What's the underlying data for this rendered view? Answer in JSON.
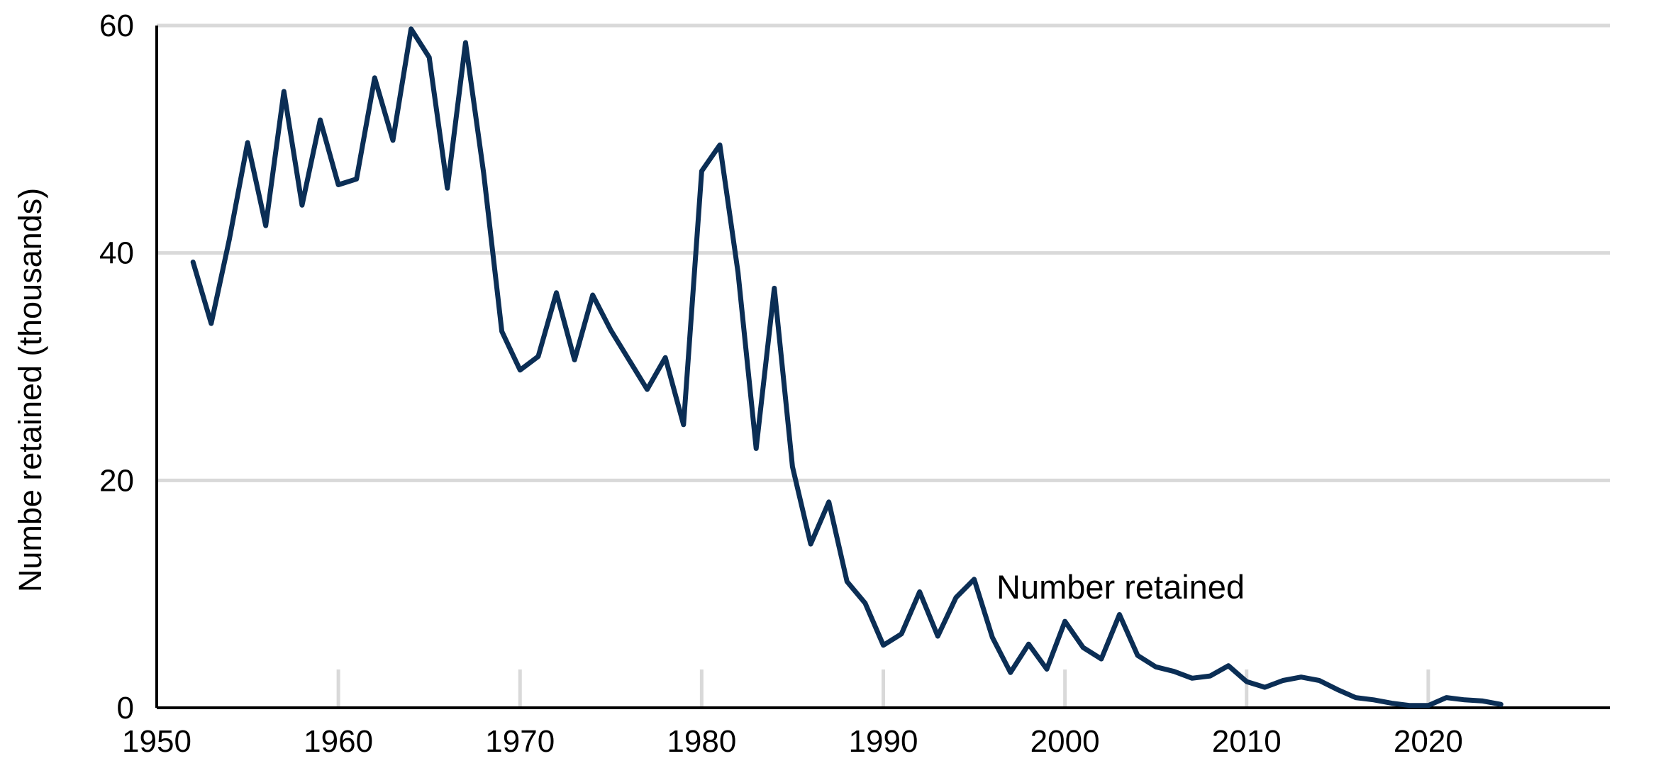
{
  "chart_data": {
    "type": "line",
    "title": "",
    "xlabel": "",
    "ylabel": "Numbe retained (thousands)",
    "xlim": [
      1950,
      2030
    ],
    "ylim": [
      0,
      60
    ],
    "x_ticks": [
      1950,
      1960,
      1970,
      1980,
      1990,
      2000,
      2010,
      2020
    ],
    "y_ticks": [
      0,
      20,
      40,
      60
    ],
    "grid": {
      "horizontal": true,
      "vertical_short_ticks": true
    },
    "legend": "none",
    "series_color": "#0b2e55",
    "grid_color": "#d9d9d9",
    "series": [
      {
        "name": "Number retained",
        "x": [
          1952,
          1953,
          1954,
          1955,
          1956,
          1957,
          1958,
          1959,
          1960,
          1961,
          1962,
          1963,
          1964,
          1965,
          1966,
          1967,
          1968,
          1969,
          1970,
          1971,
          1972,
          1973,
          1974,
          1975,
          1976,
          1977,
          1978,
          1979,
          1980,
          1981,
          1982,
          1983,
          1984,
          1985,
          1986,
          1987,
          1988,
          1989,
          1990,
          1991,
          1992,
          1993,
          1994,
          1995,
          1996,
          1997,
          1998,
          1999,
          2000,
          2001,
          2002,
          2003,
          2004,
          2005,
          2006,
          2007,
          2008,
          2009,
          2010,
          2011,
          2012,
          2013,
          2014,
          2015,
          2016,
          2017,
          2018,
          2019,
          2020,
          2021,
          2022,
          2023,
          2024
        ],
        "y": [
          39.2,
          33.8,
          41.2,
          49.7,
          42.4,
          54.2,
          44.2,
          51.7,
          46.0,
          46.5,
          55.4,
          49.9,
          59.7,
          57.2,
          45.7,
          58.5,
          47.0,
          33.1,
          29.7,
          30.9,
          36.5,
          30.6,
          36.3,
          33.2,
          30.6,
          28.0,
          30.8,
          24.9,
          47.2,
          49.5,
          38.3,
          22.8,
          36.9,
          21.2,
          14.4,
          18.1,
          11.1,
          9.2,
          5.5,
          6.5,
          10.2,
          6.3,
          9.7,
          11.3,
          6.2,
          3.1,
          5.6,
          3.4,
          7.6,
          5.3,
          4.3,
          8.2,
          4.6,
          3.6,
          3.2,
          2.6,
          2.8,
          3.7,
          2.3,
          1.8,
          2.4,
          2.7,
          2.4,
          1.6,
          0.9,
          0.7,
          0.4,
          0.2,
          0.2,
          0.9,
          0.7,
          0.6,
          0.3
        ]
      }
    ]
  }
}
